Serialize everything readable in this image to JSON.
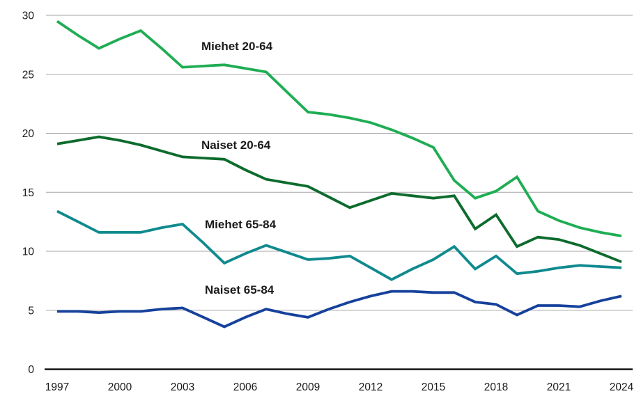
{
  "chart_data": {
    "type": "line",
    "title": "",
    "xlabel": "",
    "ylabel": "",
    "xlim": [
      1997,
      2024
    ],
    "ylim": [
      0,
      30
    ],
    "grid": true,
    "legend_position": "inline-labels",
    "x": [
      1997,
      1998,
      1999,
      2000,
      2001,
      2002,
      2003,
      2004,
      2005,
      2006,
      2007,
      2008,
      2009,
      2010,
      2011,
      2012,
      2013,
      2014,
      2015,
      2016,
      2017,
      2018,
      2019,
      2020,
      2021,
      2022,
      2023,
      2024
    ],
    "xticks": [
      1997,
      2000,
      2003,
      2006,
      2009,
      2012,
      2015,
      2018,
      2021,
      2024
    ],
    "yticks": [
      0,
      5,
      10,
      15,
      20,
      25,
      30
    ],
    "series": [
      {
        "name": "Miehet 20-64",
        "color": "#1fad53",
        "values": [
          29.5,
          28.3,
          27.2,
          28.0,
          28.7,
          27.2,
          25.6,
          25.7,
          25.8,
          25.5,
          25.2,
          23.5,
          21.8,
          21.6,
          21.3,
          20.9,
          20.3,
          19.6,
          18.8,
          16.0,
          14.5,
          15.1,
          16.3,
          13.4,
          12.6,
          12.0,
          11.6,
          11.3
        ]
      },
      {
        "name": "Naiset 20-64",
        "color": "#0d6b2d",
        "values": [
          19.1,
          19.4,
          19.7,
          19.4,
          19.0,
          18.5,
          18.0,
          17.9,
          17.8,
          16.9,
          16.1,
          15.8,
          15.5,
          14.6,
          13.7,
          14.3,
          14.9,
          14.7,
          14.5,
          14.7,
          11.9,
          13.1,
          10.4,
          11.2,
          11.0,
          10.5,
          9.8,
          9.1
        ]
      },
      {
        "name": "Miehet 65-84",
        "color": "#0f8a8e",
        "values": [
          13.4,
          12.5,
          11.6,
          11.6,
          11.6,
          12.0,
          12.3,
          10.7,
          9.0,
          9.8,
          10.5,
          9.9,
          9.3,
          9.4,
          9.6,
          8.6,
          7.6,
          8.5,
          9.3,
          10.4,
          8.5,
          9.6,
          8.1,
          8.3,
          8.6,
          8.8,
          8.7,
          8.6
        ]
      },
      {
        "name": "Naiset 65-84",
        "color": "#16419c",
        "values": [
          4.9,
          4.9,
          4.8,
          4.9,
          4.9,
          5.1,
          5.2,
          4.4,
          3.6,
          4.4,
          5.1,
          4.7,
          4.4,
          5.1,
          5.7,
          6.2,
          6.6,
          6.6,
          6.5,
          6.5,
          5.7,
          5.5,
          4.6,
          5.4,
          5.4,
          5.3,
          5.8,
          6.2
        ]
      }
    ],
    "colors": {
      "gridline": "#a6a6a6",
      "axis": "#000000",
      "tick_text": "#1a1a1a",
      "label_text": "#1a1a1a",
      "background": "#ffffff"
    }
  }
}
